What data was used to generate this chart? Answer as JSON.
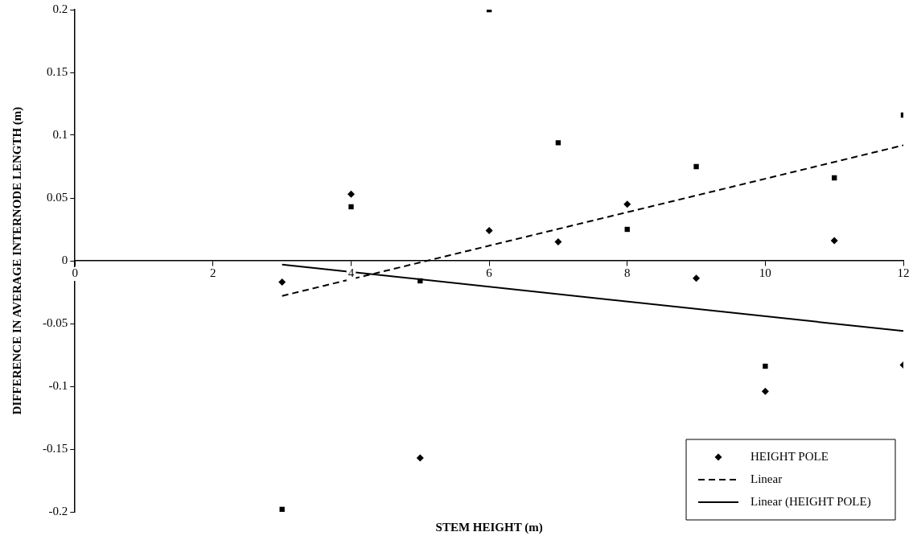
{
  "chart_data": {
    "type": "scatter",
    "xlabel": "STEM HEIGHT (m)",
    "ylabel": "DIFFERENCE IN AVERAGE INTERNODE LENGTH (m)",
    "xlim": [
      0,
      12
    ],
    "xticks": [
      0,
      2,
      4,
      6,
      8,
      10,
      12
    ],
    "ylim": [
      -0.2,
      0.2
    ],
    "yticks": [
      -0.2,
      -0.15,
      -0.1,
      -0.05,
      0,
      0.05,
      0.1,
      0.15,
      0.2
    ],
    "grid": false,
    "legend": "bottom right",
    "series": [
      {
        "name": "HEIGHT POLE",
        "marker": "diamond",
        "color": "#000000",
        "x": [
          3,
          4,
          5,
          6,
          7,
          8,
          9,
          10,
          11,
          12
        ],
        "values": [
          -0.017,
          0.053,
          -0.157,
          0.024,
          0.015,
          0.045,
          -0.014,
          -0.104,
          0.016,
          -0.083
        ]
      },
      {
        "marker": "square",
        "color": "#000000",
        "x": [
          3,
          4,
          5,
          6,
          7,
          8,
          9,
          10,
          11,
          12
        ],
        "values": [
          -0.198,
          0.043,
          -0.016,
          0.2,
          0.094,
          0.025,
          0.075,
          -0.084,
          0.066,
          0.116
        ]
      },
      {
        "name": "Linear",
        "type": "line",
        "marker": "none",
        "line_style": "dashed",
        "color": "#000000",
        "x": [
          3,
          12
        ],
        "values": [
          -0.028,
          0.092
        ]
      },
      {
        "name": "Linear (HEIGHT POLE)",
        "type": "line",
        "marker": "none",
        "line_style": "solid",
        "color": "#000000",
        "x": [
          3,
          12
        ],
        "values": [
          -0.003,
          -0.056
        ]
      }
    ]
  }
}
